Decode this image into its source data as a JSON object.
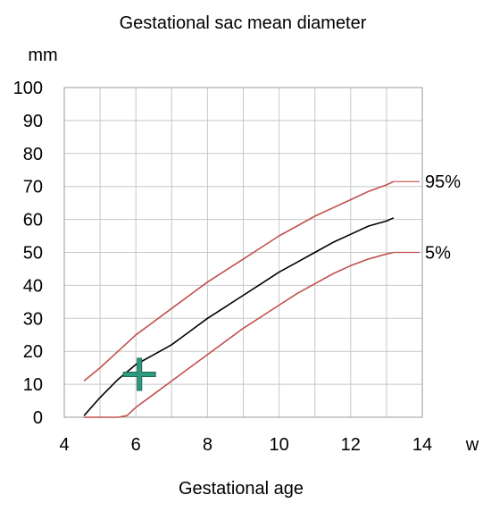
{
  "chart_data": {
    "type": "line",
    "title": "Gestational sac mean diameter",
    "ylabel": "mm",
    "xunit": "w",
    "xlabel": "Gestational age",
    "xlim": [
      4,
      14
    ],
    "ylim": [
      0,
      100
    ],
    "x_ticks": [
      "4",
      "6",
      "8",
      "10",
      "12",
      "14"
    ],
    "y_ticks": [
      "0",
      "10",
      "20",
      "30",
      "40",
      "50",
      "60",
      "70",
      "80",
      "90",
      "100"
    ],
    "grid": true,
    "series": [
      {
        "name": "95%",
        "color": "#c0504d",
        "x": [
          4.55,
          5.0,
          5.5,
          6.0,
          6.5,
          7.0,
          7.5,
          8.0,
          8.5,
          9.0,
          9.5,
          10.0,
          10.5,
          11.0,
          11.5,
          12.0,
          12.5,
          13.0,
          13.2
        ],
        "y": [
          11,
          15,
          20,
          25,
          29,
          33,
          37,
          41,
          44.5,
          48,
          51.5,
          55,
          58,
          61,
          63.5,
          66,
          68.5,
          70.5,
          71.5
        ]
      },
      {
        "name": "",
        "color": "#000000",
        "x": [
          4.55,
          5.0,
          5.5,
          6.0,
          6.5,
          7.0,
          7.5,
          8.0,
          8.5,
          9.0,
          9.5,
          10.0,
          10.5,
          11.0,
          11.5,
          12.0,
          12.5,
          13.0,
          13.2
        ],
        "y": [
          0.5,
          6,
          11.5,
          16,
          19,
          22,
          26,
          30,
          33.5,
          37,
          40.5,
          44,
          47,
          50,
          53,
          55.5,
          58,
          59.5,
          60.5
        ]
      },
      {
        "name": "5%",
        "color": "#c0504d",
        "x": [
          4.55,
          5.0,
          5.5,
          5.75,
          6.0,
          6.5,
          7.0,
          7.5,
          8.0,
          8.5,
          9.0,
          9.5,
          10.0,
          10.5,
          11.0,
          11.5,
          12.0,
          12.5,
          13.0,
          13.2
        ],
        "y": [
          0,
          0,
          0,
          0.5,
          3,
          7,
          11,
          15,
          19,
          23,
          27,
          30.5,
          34,
          37.5,
          40.5,
          43.5,
          46,
          48,
          49.5,
          50
        ]
      }
    ],
    "marker": {
      "shape": "plus",
      "color": "#2e9a80",
      "x": 6.1,
      "y": 13
    }
  }
}
